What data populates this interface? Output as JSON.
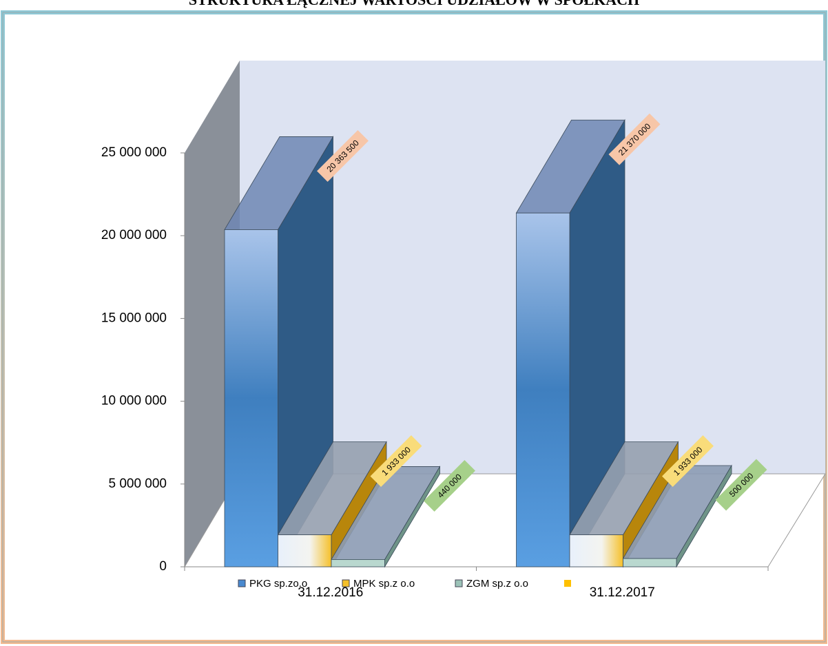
{
  "chart_data": {
    "type": "bar3d",
    "title": "STRUKTURA ŁĄCZNEJ WARTOŚCI UDZIAŁÓW W SPÓŁKACH",
    "categories": [
      "31.12.2016",
      "31.12.2017"
    ],
    "series": [
      {
        "name": "PKG sp.zo.o",
        "color": "#4a8ad0",
        "label_color": "#f7c6a8",
        "values": [
          20363500,
          21370000
        ],
        "value_labels": [
          "20 363 500",
          "21 370 000"
        ]
      },
      {
        "name": "MPK sp.z o.o",
        "color": "#f5c02a",
        "label_color": "#f9dc7a",
        "values": [
          1933000,
          1933000
        ],
        "value_labels": [
          "1 933 000",
          "1 933 000"
        ]
      },
      {
        "name": "ZGM sp.z o.o",
        "color": "#9cc3b8",
        "label_color": "#a6d08a",
        "values": [
          440000,
          500000
        ],
        "value_labels": [
          "440 000",
          "500 000"
        ]
      }
    ],
    "ylim": [
      0,
      25000000
    ],
    "yticks": [
      0,
      {
        "value": 5000000,
        "label": "5 000 000"
      },
      {
        "value": 10000000,
        "label": "10 000 000"
      },
      {
        "value": 15000000,
        "label": "15 000 000"
      },
      {
        "value": 20000000,
        "label": "20 000 000"
      },
      {
        "value": 25000000,
        "label": "25 000 000"
      }
    ]
  }
}
